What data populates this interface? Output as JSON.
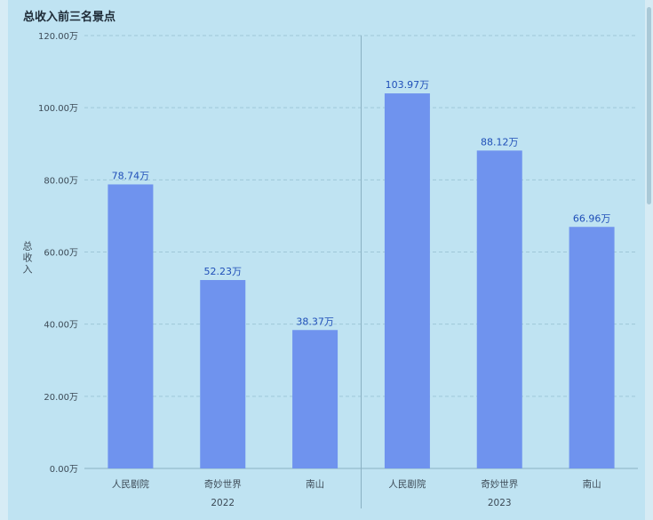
{
  "title": "总收入前三名景点",
  "chart_data": {
    "type": "bar",
    "title": "总收入前三名景点",
    "ylabel": "总收入",
    "ylim": [
      0,
      120
    ],
    "yticks": [
      "0.00万",
      "20.00万",
      "40.00万",
      "60.00万",
      "80.00万",
      "100.00万",
      "120.00万"
    ],
    "grid": true,
    "groups": [
      {
        "name": "2022",
        "categories": [
          "人民剧院",
          "奇妙世界",
          "南山"
        ],
        "values": [
          78.74,
          52.23,
          38.37
        ],
        "labels": [
          "78.74万",
          "52.23万",
          "38.37万"
        ]
      },
      {
        "name": "2023",
        "categories": [
          "人民剧院",
          "奇妙世界",
          "南山"
        ],
        "values": [
          103.97,
          88.12,
          66.96
        ],
        "labels": [
          "103.97万",
          "88.12万",
          "66.96万"
        ]
      }
    ],
    "colors": {
      "bar": "#6f93ee",
      "label": "#1f4fb8",
      "grid": "#9fc7d8",
      "axis": "#8ab0c2"
    }
  }
}
